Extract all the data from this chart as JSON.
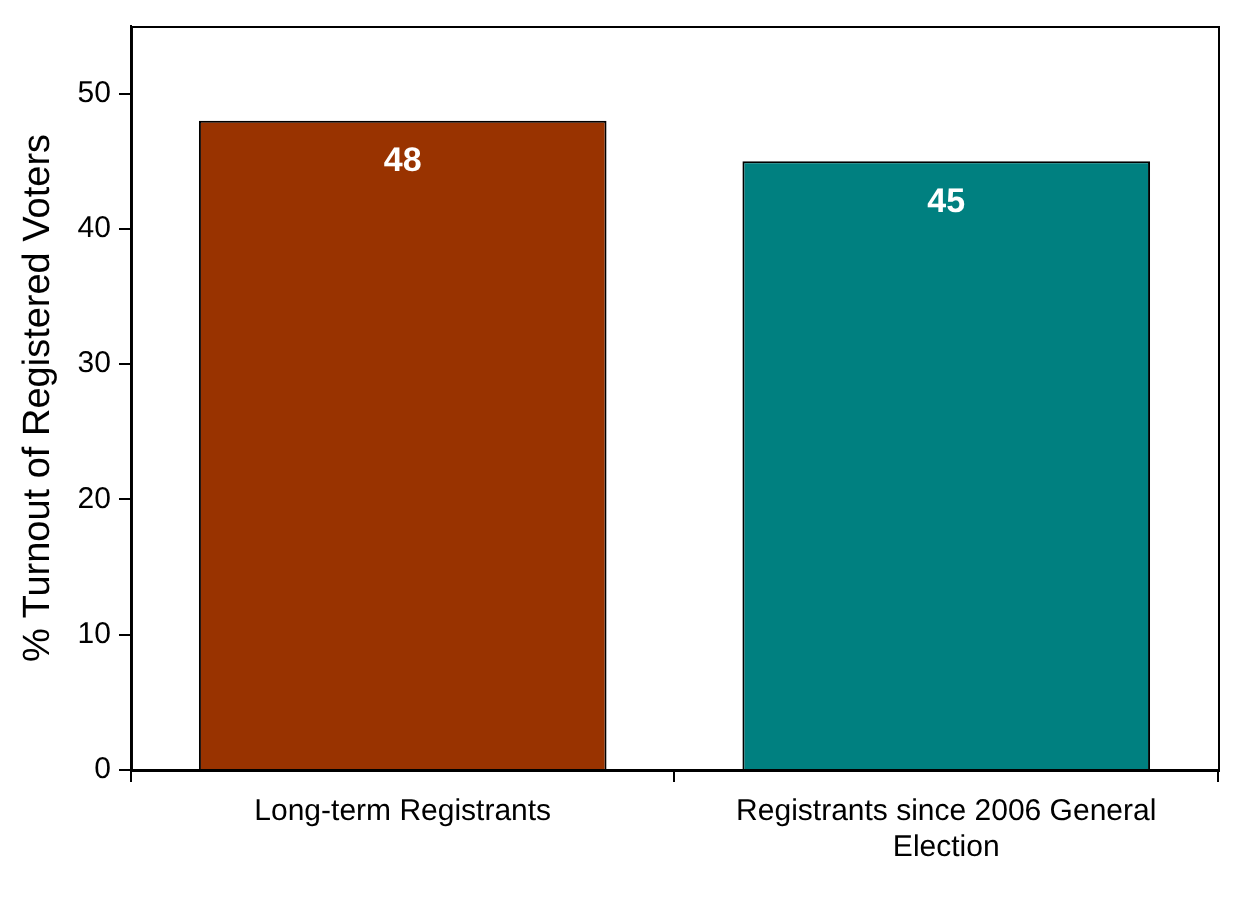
{
  "chart_data": {
    "type": "bar",
    "ylabel": "% Turnout of Registered Voters",
    "categories": [
      "Long-term Registrants",
      "Registrants since 2006 General Election"
    ],
    "values": [
      48,
      45
    ],
    "colors": [
      "#993300",
      "#008080"
    ],
    "ylim": [
      0,
      55
    ],
    "yticks": [
      0,
      10,
      20,
      30,
      40,
      50
    ],
    "grid": false,
    "legend": false,
    "data_labels": true
  }
}
